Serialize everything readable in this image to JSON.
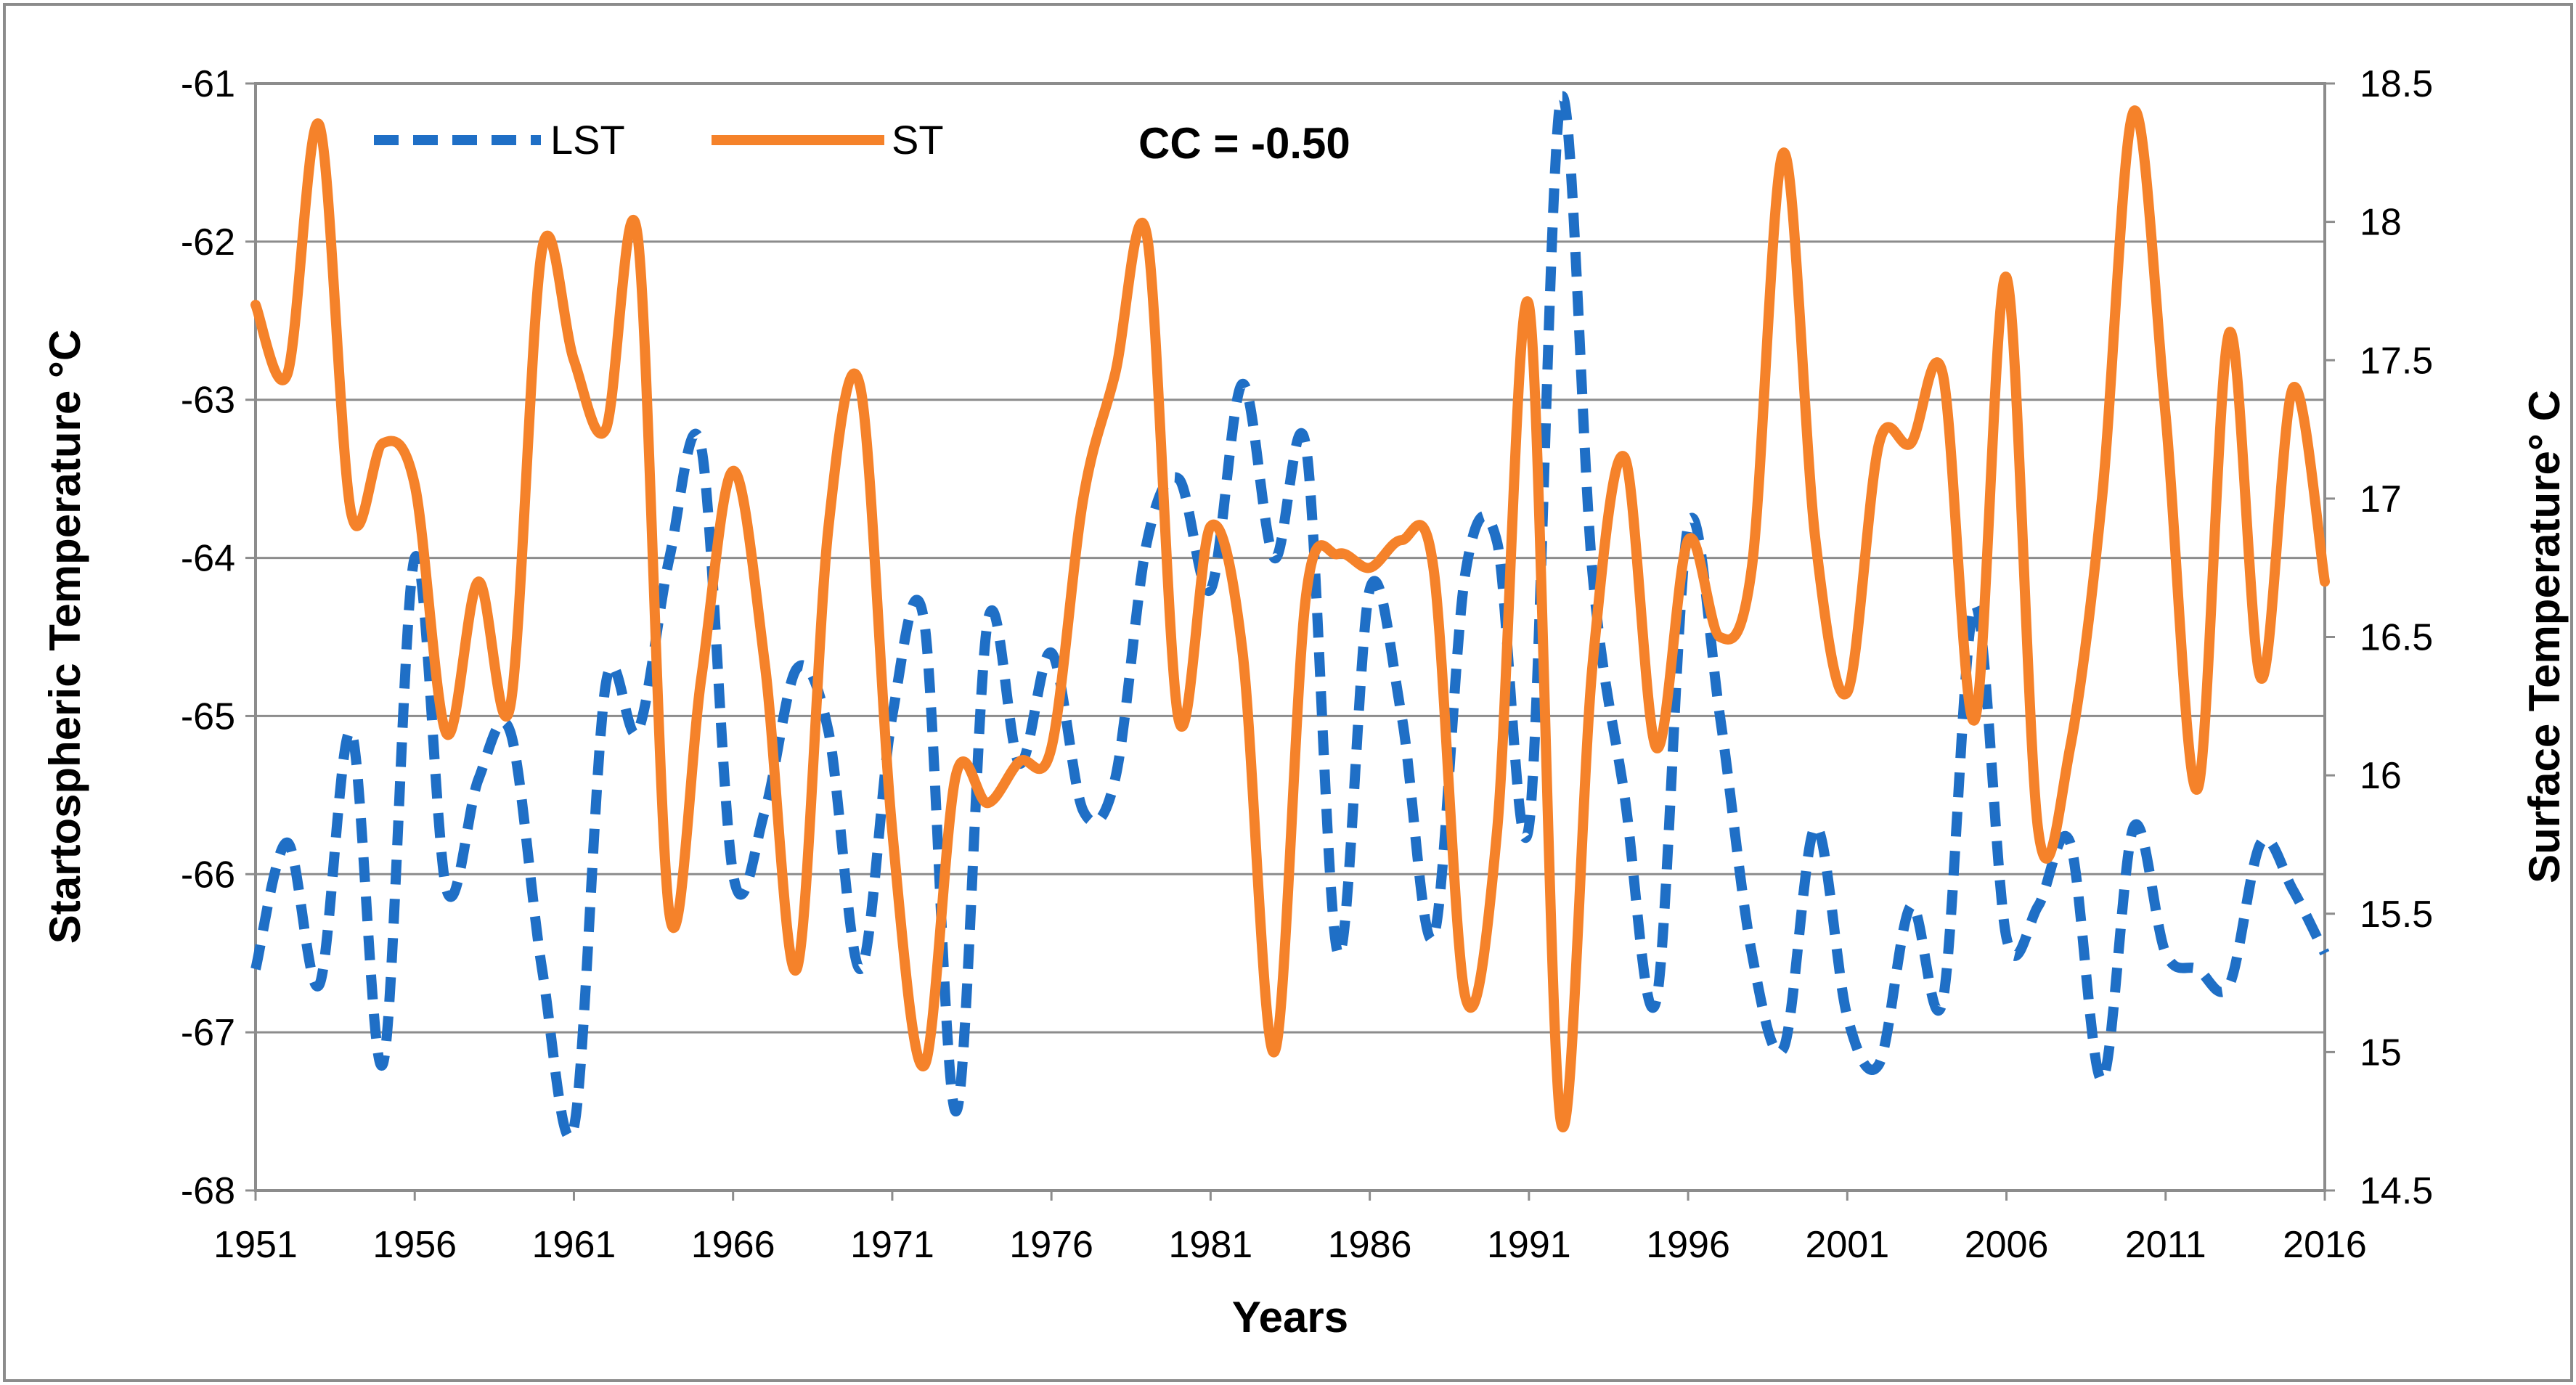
{
  "chart_data": {
    "type": "line",
    "title": "",
    "xlabel": "Years",
    "ylabel": "Startospheric Temperature °C",
    "ylabel_right": "Surface Temperature° C",
    "annotation": "CC = -0.50",
    "xlim": [
      1951,
      2016
    ],
    "ylim": [
      -68,
      -61
    ],
    "ylim_right": [
      14.5,
      18.5
    ],
    "x_ticks": [
      "1951",
      "1956",
      "1961",
      "1966",
      "1971",
      "1976",
      "1981",
      "1986",
      "1991",
      "1996",
      "2001",
      "2006",
      "2011",
      "2016"
    ],
    "y_ticks_left": [
      "-61",
      "-62",
      "-63",
      "-64",
      "-65",
      "-66",
      "-67",
      "-68"
    ],
    "y_ticks_right": [
      "18.5",
      "18",
      "17.5",
      "17",
      "16.5",
      "16",
      "15.5",
      "15",
      "14.5"
    ],
    "grid": true,
    "legend_position": "top-left",
    "x": [
      1951,
      1952,
      1953,
      1954,
      1955,
      1956,
      1957,
      1958,
      1959,
      1960,
      1961,
      1962,
      1963,
      1964,
      1965,
      1966,
      1967,
      1968,
      1969,
      1970,
      1971,
      1972,
      1973,
      1974,
      1975,
      1976,
      1977,
      1978,
      1979,
      1980,
      1981,
      1982,
      1983,
      1984,
      1985,
      1986,
      1987,
      1988,
      1989,
      1990,
      1991,
      1992,
      1993,
      1994,
      1995,
      1996,
      1997,
      1998,
      1999,
      2000,
      2001,
      2002,
      2003,
      2004,
      2005,
      2006,
      2007,
      2008,
      2009,
      2010,
      2011,
      2012,
      2013,
      2014,
      2015,
      2016
    ],
    "series": [
      {
        "name": "LST",
        "axis": "left",
        "color": "#1f6fc6",
        "style": "dashed",
        "values": [
          -66.6,
          -65.8,
          -66.7,
          -65.1,
          -67.2,
          -64.0,
          -66.1,
          -65.4,
          -65.1,
          -66.6,
          -67.6,
          -64.8,
          -65.1,
          -64.0,
          -63.3,
          -66.0,
          -65.6,
          -64.7,
          -65.1,
          -66.6,
          -65.0,
          -64.4,
          -67.5,
          -64.4,
          -65.3,
          -64.6,
          -65.6,
          -65.4,
          -63.9,
          -63.5,
          -64.2,
          -62.9,
          -64.0,
          -63.3,
          -66.5,
          -64.2,
          -65.0,
          -66.4,
          -64.1,
          -63.9,
          -65.7,
          -61.1,
          -64.1,
          -65.5,
          -66.8,
          -63.8,
          -65.0,
          -66.5,
          -67.1,
          -65.7,
          -66.9,
          -67.2,
          -66.2,
          -66.8,
          -64.3,
          -66.4,
          -66.2,
          -65.8,
          -67.3,
          -65.7,
          -66.5,
          -66.6,
          -66.7,
          -65.8,
          -66.1,
          -66.5
        ]
      },
      {
        "name": "ST",
        "axis": "right",
        "color": "#f5822a",
        "style": "solid",
        "values": [
          17.7,
          17.45,
          18.35,
          16.95,
          17.2,
          17.05,
          16.15,
          16.7,
          16.25,
          17.9,
          17.5,
          17.25,
          17.95,
          15.5,
          16.35,
          17.1,
          16.4,
          15.3,
          16.9,
          17.4,
          15.8,
          14.95,
          16.0,
          15.9,
          16.05,
          16.1,
          17.0,
          17.45,
          17.95,
          16.2,
          16.9,
          16.45,
          15.0,
          16.65,
          16.8,
          16.75,
          16.85,
          16.75,
          15.2,
          15.8,
          17.7,
          14.75,
          16.4,
          17.15,
          16.1,
          16.85,
          16.5,
          16.75,
          18.25,
          16.85,
          16.3,
          17.2,
          17.2,
          17.45,
          16.2,
          17.8,
          15.8,
          16.1,
          17.0,
          18.4,
          17.3,
          15.95,
          17.6,
          16.35,
          17.4,
          16.7
        ]
      }
    ]
  }
}
